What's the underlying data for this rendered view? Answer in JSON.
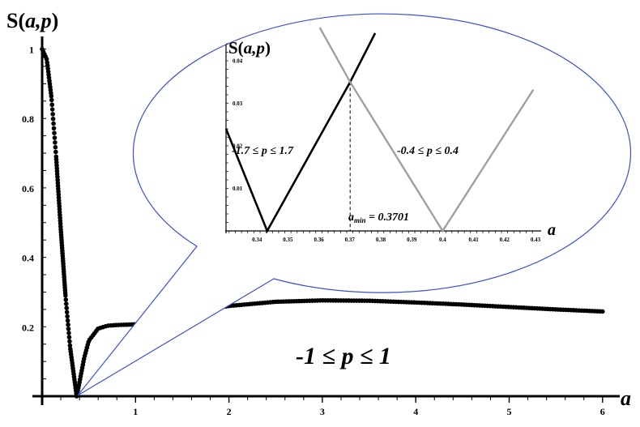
{
  "chart_data": [
    {
      "type": "scatter",
      "title": "",
      "ylabel": "S(a,p)",
      "xlabel": "a",
      "xlim": [
        0,
        6.3
      ],
      "ylim": [
        0,
        1.05
      ],
      "x_ticks": [
        "1",
        "2",
        "3",
        "4",
        "5",
        "6"
      ],
      "y_ticks": [
        "0.2",
        "0.4",
        "0.6",
        "0.8",
        "1"
      ],
      "annotation": "-1 ≤ p ≤ 1",
      "series": [
        {
          "name": "",
          "color": "#000000",
          "x": [
            0.0,
            0.05,
            0.1,
            0.15,
            0.2,
            0.25,
            0.3,
            0.35,
            0.37,
            0.4,
            0.45,
            0.5,
            0.6,
            0.7,
            0.8,
            1.0,
            1.2,
            1.4,
            1.6,
            1.8,
            2.0,
            2.5,
            3.0,
            3.5,
            4.0,
            4.5,
            5.0,
            5.5,
            6.0
          ],
          "y": [
            1.0,
            0.97,
            0.86,
            0.69,
            0.48,
            0.29,
            0.14,
            0.04,
            0.0,
            0.04,
            0.11,
            0.16,
            0.195,
            0.203,
            0.205,
            0.207,
            0.215,
            0.228,
            0.241,
            0.252,
            0.26,
            0.272,
            0.276,
            0.275,
            0.27,
            0.264,
            0.257,
            0.25,
            0.244
          ]
        }
      ]
    },
    {
      "type": "line",
      "title": "",
      "ylabel": "S(a,p)",
      "xlabel": "a",
      "xlim": [
        0.33,
        0.432
      ],
      "ylim": [
        0,
        0.05
      ],
      "x_ticks": [
        "0.34",
        "0.35",
        "0.36",
        "0.37",
        "0.38",
        "0.39",
        "0.4",
        "0.41",
        "0.42",
        "0.43"
      ],
      "y_ticks": [
        "0.01",
        "0.02",
        "0.03",
        "0.04"
      ],
      "annotations": [
        "-1.7 ≤ p ≤ 1.7",
        "-0.4 ≤ p ≤ 0.4"
      ],
      "amin_label": "a",
      "amin_sub": "min",
      "amin_value": " = 0.3701",
      "amin_x": 0.3701,
      "series": [
        {
          "name": "",
          "color": "#000000",
          "x": [
            0.33,
            0.3433,
            0.3701,
            0.3782
          ],
          "y": [
            0.024,
            0.0,
            0.035,
            0.0465
          ]
        },
        {
          "name": "",
          "color": "#a0a0a0",
          "x": [
            0.3603,
            0.3701,
            0.4,
            0.4293
          ],
          "y": [
            0.0478,
            0.035,
            0.0,
            0.0332
          ]
        }
      ]
    }
  ]
}
